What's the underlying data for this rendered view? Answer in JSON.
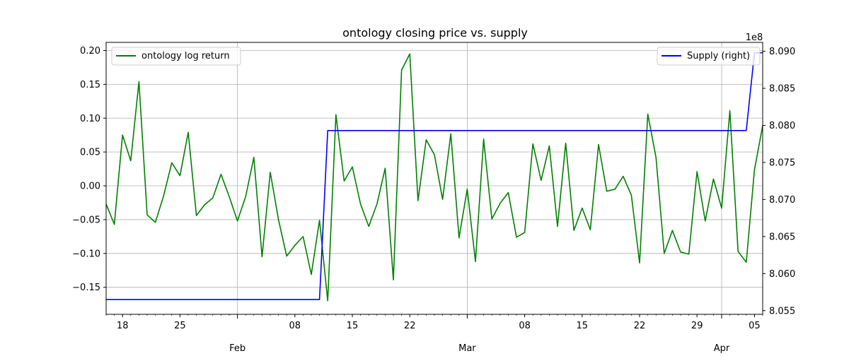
{
  "chart_data": {
    "type": "line",
    "title": "ontology closing price vs. supply",
    "x_start": "2018-01-16",
    "x_end": "2018-04-06",
    "left_axis": {
      "ylim": [
        -0.19,
        0.212
      ],
      "ticks": [
        0.2,
        0.15,
        0.1,
        0.05,
        0.0,
        -0.05,
        -0.1,
        -0.15
      ],
      "tick_labels": [
        "0.20",
        "0.15",
        "0.10",
        "0.05",
        "0.00",
        "−0.05",
        "−0.10",
        "−0.15"
      ]
    },
    "right_axis": {
      "ylim": [
        805.45,
        809.12
      ],
      "scale_label": "1e8",
      "ticks": [
        809.0,
        808.5,
        808.0,
        807.5,
        807.0,
        806.5,
        806.0,
        805.5
      ],
      "tick_labels": [
        "8.090",
        "8.085",
        "8.080",
        "8.075",
        "8.070",
        "8.065",
        "8.060",
        "8.055"
      ]
    },
    "x_minor_ticks": [
      {
        "date": "2018-01-18",
        "label": "18"
      },
      {
        "date": "2018-01-25",
        "label": "25"
      },
      {
        "date": "2018-02-08",
        "label": "08"
      },
      {
        "date": "2018-02-15",
        "label": "15"
      },
      {
        "date": "2018-02-22",
        "label": "22"
      },
      {
        "date": "2018-03-08",
        "label": "08"
      },
      {
        "date": "2018-03-15",
        "label": "15"
      },
      {
        "date": "2018-03-22",
        "label": "22"
      },
      {
        "date": "2018-03-29",
        "label": "29"
      },
      {
        "date": "2018-04-05",
        "label": "05"
      }
    ],
    "x_major_ticks": [
      {
        "date": "2018-02-01",
        "label": "Feb"
      },
      {
        "date": "2018-03-01",
        "label": "Mar"
      },
      {
        "date": "2018-04-01",
        "label": "Apr"
      }
    ],
    "grid": true,
    "legend_left": {
      "placement": "top-left",
      "label": "ontology log return",
      "color": "#008000"
    },
    "legend_right": {
      "placement": "top-right",
      "label": "Supply (right)",
      "color": "#0000ff"
    },
    "series": [
      {
        "name": "ontology log return",
        "axis": "left",
        "color": "#008000",
        "x": [
          "2018-01-16",
          "2018-01-17",
          "2018-01-18",
          "2018-01-19",
          "2018-01-20",
          "2018-01-21",
          "2018-01-22",
          "2018-01-23",
          "2018-01-24",
          "2018-01-25",
          "2018-01-26",
          "2018-01-27",
          "2018-01-28",
          "2018-01-29",
          "2018-01-30",
          "2018-01-31",
          "2018-02-01",
          "2018-02-02",
          "2018-02-03",
          "2018-02-04",
          "2018-02-05",
          "2018-02-06",
          "2018-02-07",
          "2018-02-08",
          "2018-02-09",
          "2018-02-10",
          "2018-02-11",
          "2018-02-12",
          "2018-02-13",
          "2018-02-14",
          "2018-02-15",
          "2018-02-16",
          "2018-02-17",
          "2018-02-18",
          "2018-02-19",
          "2018-02-20",
          "2018-02-21",
          "2018-02-22",
          "2018-02-23",
          "2018-02-24",
          "2018-02-25",
          "2018-02-26",
          "2018-02-27",
          "2018-02-28",
          "2018-03-01",
          "2018-03-02",
          "2018-03-03",
          "2018-03-04",
          "2018-03-05",
          "2018-03-06",
          "2018-03-07",
          "2018-03-08",
          "2018-03-09",
          "2018-03-10",
          "2018-03-11",
          "2018-03-12",
          "2018-03-13",
          "2018-03-14",
          "2018-03-15",
          "2018-03-16",
          "2018-03-17",
          "2018-03-18",
          "2018-03-19",
          "2018-03-20",
          "2018-03-21",
          "2018-03-22",
          "2018-03-23",
          "2018-03-24",
          "2018-03-25",
          "2018-03-26",
          "2018-03-27",
          "2018-03-28",
          "2018-03-29",
          "2018-03-30",
          "2018-03-31",
          "2018-04-01",
          "2018-04-02",
          "2018-04-03",
          "2018-04-04",
          "2018-04-05",
          "2018-04-06"
        ],
        "values": [
          -0.027,
          -0.057,
          0.075,
          0.037,
          0.154,
          -0.043,
          -0.054,
          -0.015,
          0.034,
          0.015,
          0.079,
          -0.044,
          -0.028,
          -0.018,
          0.017,
          -0.016,
          -0.052,
          -0.016,
          0.042,
          -0.105,
          0.02,
          -0.05,
          -0.104,
          -0.088,
          -0.075,
          -0.131,
          -0.051,
          -0.17,
          0.105,
          0.007,
          0.028,
          -0.027,
          -0.06,
          -0.027,
          0.026,
          -0.139,
          0.171,
          0.195,
          -0.022,
          0.068,
          0.046,
          -0.02,
          0.077,
          -0.077,
          -0.005,
          -0.112,
          0.069,
          -0.049,
          -0.026,
          -0.01,
          -0.076,
          -0.069,
          0.062,
          0.008,
          0.059,
          -0.06,
          0.063,
          -0.066,
          -0.033,
          -0.065,
          0.061,
          -0.008,
          -0.005,
          0.014,
          -0.014,
          -0.114,
          0.106,
          0.042,
          -0.1,
          -0.066,
          -0.098,
          -0.101,
          0.021,
          -0.052,
          0.01,
          -0.033,
          0.111,
          -0.097,
          -0.113,
          0.024,
          0.089
        ]
      },
      {
        "name": "Supply (right)",
        "axis": "right",
        "color": "#0000ff",
        "x": [
          "2018-01-16",
          "2018-02-11",
          "2018-02-12",
          "2018-04-04",
          "2018-04-05",
          "2018-04-06"
        ],
        "values": [
          805.65,
          805.65,
          807.93,
          807.93,
          808.98,
          808.98
        ]
      }
    ]
  }
}
